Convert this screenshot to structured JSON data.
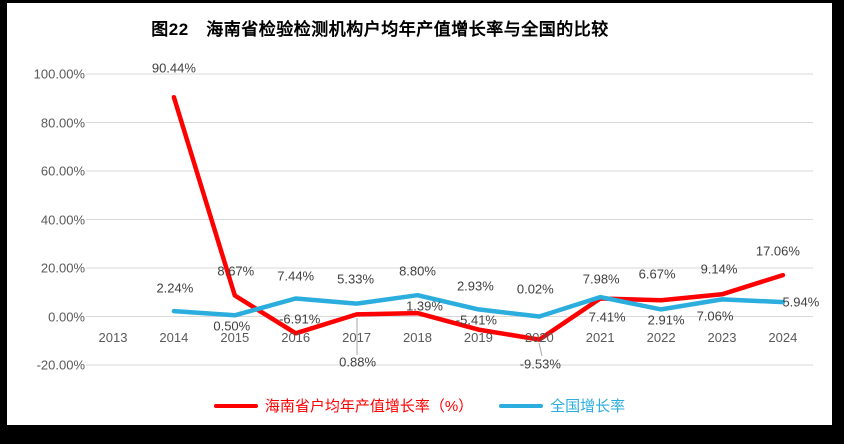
{
  "title": "图22　海南省检验检测机构户均年产值增长率与全国的比较",
  "chart_data": {
    "type": "line",
    "title": "图22　海南省检验检测机构户均年产值增长率与全国的比较",
    "categories": [
      "2013",
      "2014",
      "2015",
      "2016",
      "2017",
      "2018",
      "2019",
      "2020",
      "2021",
      "2022",
      "2023",
      "2024"
    ],
    "series": [
      {
        "name": "海南省户均年产值增长率（%）",
        "color": "#fe0000",
        "values": [
          null,
          90.44,
          8.67,
          -6.91,
          0.88,
          1.39,
          -5.41,
          -9.53,
          7.41,
          6.67,
          9.14,
          17.06
        ],
        "labels": [
          null,
          "90.44%",
          "8.67%",
          "-6.91%",
          "0.88%",
          "1.39%",
          "-5.41%",
          "-9.53%",
          "7.41%",
          "6.67%",
          "9.14%",
          "17.06%"
        ]
      },
      {
        "name": "全国增长率",
        "color": "#2badde",
        "values": [
          null,
          2.24,
          0.5,
          7.44,
          5.33,
          8.8,
          2.93,
          0.02,
          7.98,
          2.91,
          7.06,
          5.94
        ],
        "labels": [
          null,
          "2.24%",
          "0.50%",
          "7.44%",
          "5.33%",
          "8.80%",
          "2.93%",
          "0.02%",
          "7.98%",
          "2.91%",
          "7.06%",
          "5.94%"
        ]
      }
    ],
    "yticks": [
      {
        "label": "100.00%",
        "value": 100
      },
      {
        "label": "80.00%",
        "value": 80
      },
      {
        "label": "60.00%",
        "value": 60
      },
      {
        "label": "40.00%",
        "value": 40
      },
      {
        "label": "20.00%",
        "value": 20
      },
      {
        "label": "0.00%",
        "value": 0
      },
      {
        "label": "-20.00%",
        "value": -20
      }
    ],
    "ylim": [
      -20,
      100
    ],
    "xlabel": "",
    "ylabel": "",
    "grid": true,
    "legend_position": "bottom",
    "colors": {
      "grid": "#d9d9d9",
      "axis_text": "#595959",
      "data_label_text": "#3f3f3f",
      "leader_line": "#a6a6a6",
      "frame": "#000000",
      "background": "#ffffff"
    }
  }
}
